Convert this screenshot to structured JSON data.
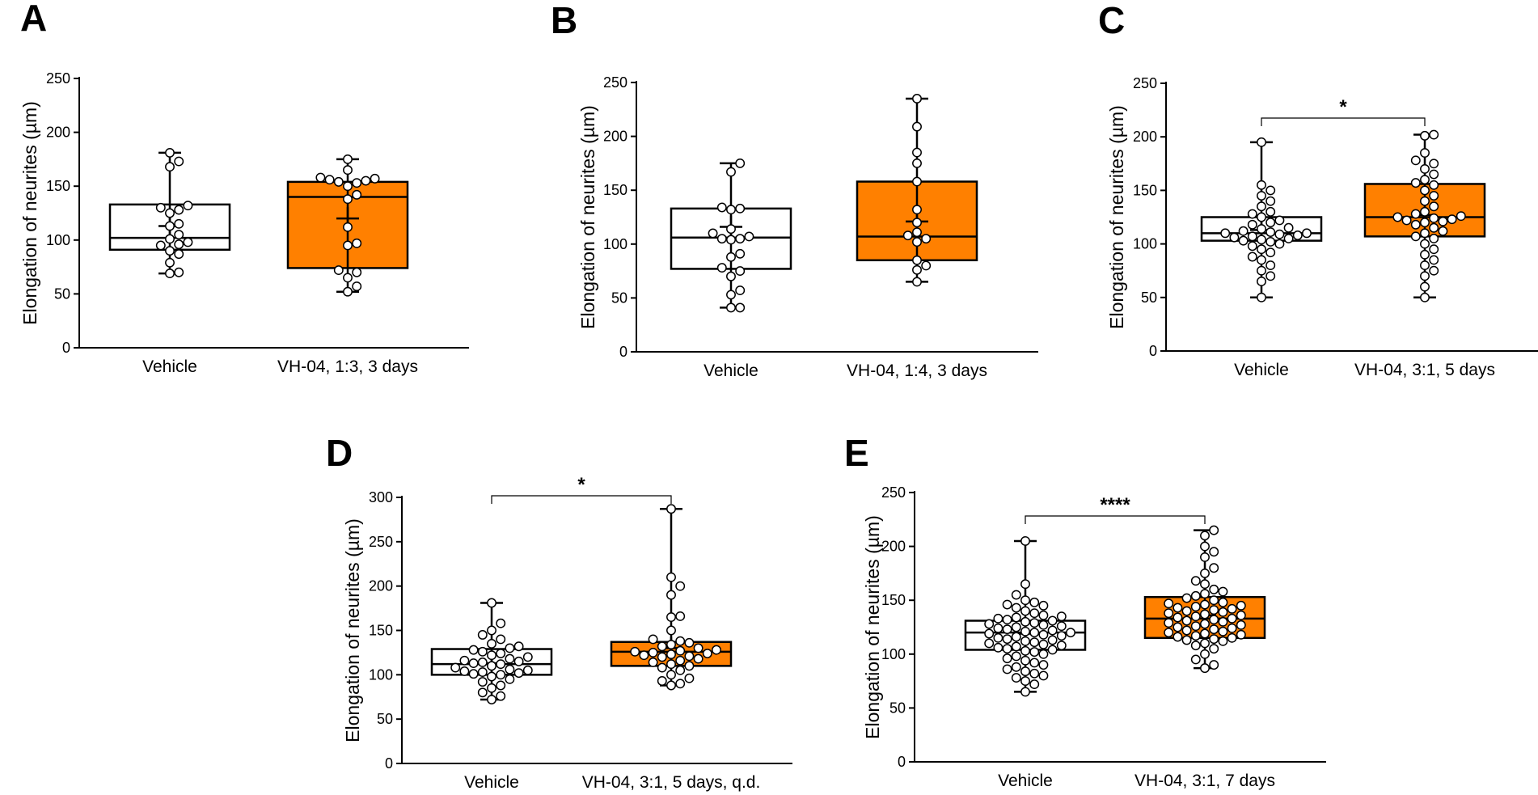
{
  "colors": {
    "vehicle_box": "#ffffff",
    "treated_box": "#ff8000",
    "ink": "#000000"
  },
  "chart_data": [
    {
      "panel": "A",
      "type": "box",
      "ylabel": "Elongation of neurites (µm)",
      "ylim": [
        0,
        250
      ],
      "yticks": [
        "0",
        "50",
        "100",
        "150",
        "200",
        "250"
      ],
      "categories": [
        "Vehicle",
        "VH-04, 1:3, 3 days"
      ],
      "significance": "",
      "groups": [
        {
          "name": "Vehicle",
          "min": 69,
          "q1": 91,
          "median": 102,
          "q3": 133,
          "max": 181,
          "mean": 113,
          "points": [
            181,
            173,
            168,
            132,
            130,
            128,
            125,
            115,
            113,
            105,
            101,
            98,
            96,
            95,
            90,
            87,
            79,
            70,
            69
          ]
        },
        {
          "name": "VH-04, 1:3, 3 days",
          "min": 52,
          "q1": 74,
          "median": 140,
          "q3": 154,
          "max": 175,
          "mean": 120,
          "points": [
            175,
            165,
            158,
            157,
            156,
            155,
            154,
            153,
            150,
            142,
            138,
            112,
            97,
            95,
            72,
            70,
            65,
            57,
            52
          ]
        }
      ]
    },
    {
      "panel": "B",
      "type": "box",
      "ylabel": "Elongation of neurites (µm)",
      "ylim": [
        0,
        250
      ],
      "yticks": [
        "0",
        "50",
        "100",
        "150",
        "200",
        "250"
      ],
      "categories": [
        "Vehicle",
        "VH-04, 1:4, 3 days"
      ],
      "significance": "",
      "groups": [
        {
          "name": "Vehicle",
          "min": 41,
          "q1": 77,
          "median": 106,
          "q3": 133,
          "max": 175,
          "mean": 116,
          "points": [
            175,
            167,
            134,
            133,
            132,
            114,
            110,
            107,
            105,
            105,
            104,
            91,
            88,
            78,
            75,
            70,
            57,
            53,
            41,
            41
          ]
        },
        {
          "name": "VH-04, 1:4, 3 days",
          "min": 65,
          "q1": 85,
          "median": 107,
          "q3": 158,
          "max": 235,
          "mean": 121,
          "points": [
            235,
            209,
            185,
            175,
            158,
            132,
            120,
            111,
            108,
            105,
            102,
            85,
            80,
            76,
            65
          ]
        }
      ]
    },
    {
      "panel": "C",
      "type": "box",
      "ylabel": "Elongation of neurites (µm)",
      "ylim": [
        0,
        250
      ],
      "yticks": [
        "0",
        "50",
        "100",
        "150",
        "200",
        "250"
      ],
      "categories": [
        "Vehicle",
        "VH-04, 3:1, 5 days"
      ],
      "significance": "*",
      "groups": [
        {
          "name": "Vehicle",
          "min": 50,
          "q1": 103,
          "median": 110,
          "q3": 125,
          "max": 195,
          "mean": 113,
          "points": [
            195,
            155,
            150,
            145,
            140,
            135,
            130,
            128,
            125,
            122,
            120,
            118,
            115,
            114,
            112,
            111,
            110,
            110,
            109,
            108,
            107,
            106,
            105,
            104,
            103,
            102,
            100,
            98,
            95,
            92,
            88,
            85,
            80,
            75,
            70,
            65,
            50
          ]
        },
        {
          "name": "VH-04, 3:1, 5 days",
          "min": 50,
          "q1": 107,
          "median": 125,
          "q3": 156,
          "max": 202,
          "mean": 127,
          "points": [
            202,
            201,
            185,
            178,
            175,
            170,
            165,
            160,
            157,
            155,
            150,
            145,
            140,
            135,
            130,
            128,
            126,
            125,
            124,
            123,
            122,
            121,
            120,
            118,
            115,
            112,
            110,
            107,
            105,
            100,
            95,
            90,
            85,
            80,
            75,
            70,
            60,
            50
          ]
        }
      ]
    },
    {
      "panel": "D",
      "type": "box",
      "ylabel": "Elongation of neurites (µm)",
      "ylim": [
        0,
        300
      ],
      "yticks": [
        "0",
        "50",
        "100",
        "150",
        "200",
        "250",
        "300"
      ],
      "categories": [
        "Vehicle",
        "VH-04, 3:1, 5 days, q.d."
      ],
      "significance": "*",
      "groups": [
        {
          "name": "Vehicle",
          "min": 72,
          "q1": 100,
          "median": 112,
          "q3": 129,
          "max": 181,
          "mean": 113,
          "points": [
            181,
            158,
            150,
            145,
            140,
            135,
            132,
            130,
            128,
            126,
            124,
            122,
            120,
            118,
            116,
            115,
            114,
            113,
            112,
            110,
            108,
            106,
            105,
            104,
            103,
            102,
            101,
            100,
            98,
            95,
            92,
            88,
            85,
            80,
            76,
            72
          ]
        },
        {
          "name": "VH-04, 3:1, 5 days, q.d.",
          "min": 88,
          "q1": 110,
          "median": 126,
          "q3": 137,
          "max": 287,
          "mean": 130,
          "points": [
            287,
            210,
            200,
            190,
            166,
            165,
            150,
            140,
            138,
            136,
            134,
            132,
            130,
            128,
            127,
            126,
            125,
            124,
            123,
            122,
            121,
            120,
            118,
            116,
            114,
            112,
            110,
            108,
            105,
            100,
            96,
            93,
            90,
            88
          ]
        }
      ]
    },
    {
      "panel": "E",
      "type": "box",
      "ylabel": "Elongation of neurites (µm)",
      "ylim": [
        0,
        250
      ],
      "yticks": [
        "0",
        "50",
        "100",
        "150",
        "200",
        "250"
      ],
      "categories": [
        "Vehicle",
        "VH-04, 3:1, 7 days"
      ],
      "significance": "****",
      "groups": [
        {
          "name": "Vehicle",
          "min": 65,
          "q1": 104,
          "median": 120,
          "q3": 131,
          "max": 205,
          "mean": 119,
          "points": [
            205,
            165,
            155,
            150,
            148,
            146,
            145,
            143,
            140,
            138,
            136,
            135,
            134,
            133,
            132,
            131,
            130,
            129,
            128,
            127,
            126,
            125,
            124,
            123,
            122,
            121,
            120,
            120,
            119,
            118,
            117,
            116,
            115,
            114,
            113,
            112,
            111,
            110,
            109,
            108,
            107,
            106,
            105,
            104,
            103,
            102,
            100,
            98,
            96,
            94,
            92,
            90,
            88,
            86,
            84,
            82,
            80,
            78,
            75,
            72,
            65
          ]
        },
        {
          "name": "VH-04, 3:1, 7 days",
          "min": 87,
          "q1": 115,
          "median": 133,
          "q3": 153,
          "max": 215,
          "mean": 136,
          "points": [
            215,
            210,
            200,
            195,
            190,
            180,
            175,
            168,
            165,
            160,
            158,
            156,
            154,
            152,
            150,
            148,
            147,
            146,
            145,
            144,
            143,
            142,
            141,
            140,
            139,
            138,
            137,
            136,
            135,
            134,
            133,
            132,
            131,
            130,
            129,
            128,
            127,
            126,
            125,
            124,
            123,
            122,
            121,
            120,
            119,
            118,
            117,
            116,
            115,
            114,
            113,
            112,
            110,
            108,
            105,
            100,
            95,
            90,
            87
          ]
        }
      ]
    }
  ]
}
